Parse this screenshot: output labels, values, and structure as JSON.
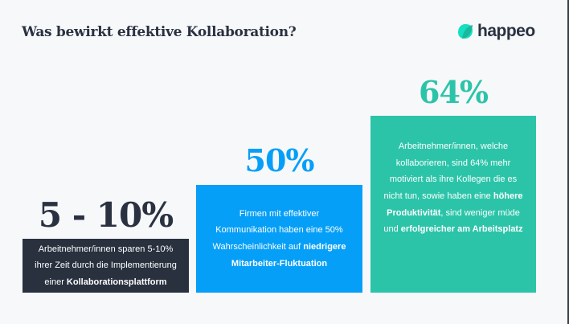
{
  "header": {
    "title": "Was bewirkt effektive Kollaboration?",
    "logo_text": "happeo"
  },
  "colors": {
    "dark": "#29313f",
    "blue": "#069ff8",
    "green": "#2cc4a9",
    "text": "#2a3140"
  },
  "stats": [
    {
      "value": "5 - 10%",
      "lines": [
        [
          {
            "t": "Arbeitnehmer/innen sparen 5-10%"
          }
        ],
        [
          {
            "t": "ihrer Zeit durch die Implementierung"
          }
        ],
        [
          {
            "t": "einer "
          },
          {
            "t": "Kollaborationsplattform",
            "b": true
          }
        ]
      ]
    },
    {
      "value": "50%",
      "lines": [
        [
          {
            "t": "Firmen mit effektiver"
          }
        ],
        [
          {
            "t": "Kommunikation haben eine 50%"
          }
        ],
        [
          {
            "t": "Wahrscheinlichkeit auf "
          },
          {
            "t": "niedrigere",
            "b": true
          }
        ],
        [
          {
            "t": "Mitarbeiter-Fluktuation",
            "b": true
          }
        ]
      ]
    },
    {
      "value": "64%",
      "lines": [
        [
          {
            "t": "Arbeitnehmer/innen, welche"
          }
        ],
        [
          {
            "t": "kollaborieren, sind 64% mehr"
          }
        ],
        [
          {
            "t": "motiviert als ihre Kollegen die es"
          }
        ],
        [
          {
            "t": "nicht tun, sowie haben eine "
          },
          {
            "t": "höhere",
            "b": true
          }
        ],
        [
          {
            "t": "Produktivität",
            "b": true
          },
          {
            "t": ", sind weniger müde"
          }
        ],
        [
          {
            "t": "und "
          },
          {
            "t": "erfolgreicher am Arbeitsplatz",
            "b": true
          }
        ]
      ]
    }
  ]
}
